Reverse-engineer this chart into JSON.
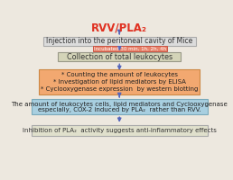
{
  "title": "RVV/PLA₂",
  "title_color": "#e03020",
  "bg_color": "#ede8df",
  "box1_text": "Injection into the peritoneal cavity of Mice",
  "box1_color": "#dcdcdc",
  "box1_border": "#aaaaaa",
  "box_incubated_text": "Incubated 30 min, 1h, 2h, 4h",
  "box_incubated_color": "#e8826a",
  "box_incubated_border": "#cc5544",
  "box2_text": "Collection of total leukocytes",
  "box2_color": "#d4d4b8",
  "box2_border": "#999988",
  "box3_line1": "* Counting the amount of leukocytes",
  "box3_line2": "* Investigation of lipid mediators by ELISA",
  "box3_line3": "* Cyclooxygenase expression  by western blotting",
  "box3_color": "#f2a870",
  "box3_border": "#cc8844",
  "box4_line1": "The amount of leukocytes cells, lipid mediators and Cyclooxygenase",
  "box4_line2": "especially, COX-2 induced by PLA₂  rather than RVV.",
  "box4_color": "#a8cfe0",
  "box4_border": "#7aaabb",
  "box5_text": "Inhibition of PLA₂  activity suggests anti-inflammatory effects",
  "box5_color": "#e0e0cc",
  "box5_border": "#aaaaaa",
  "arrow_color": "#5566bb"
}
